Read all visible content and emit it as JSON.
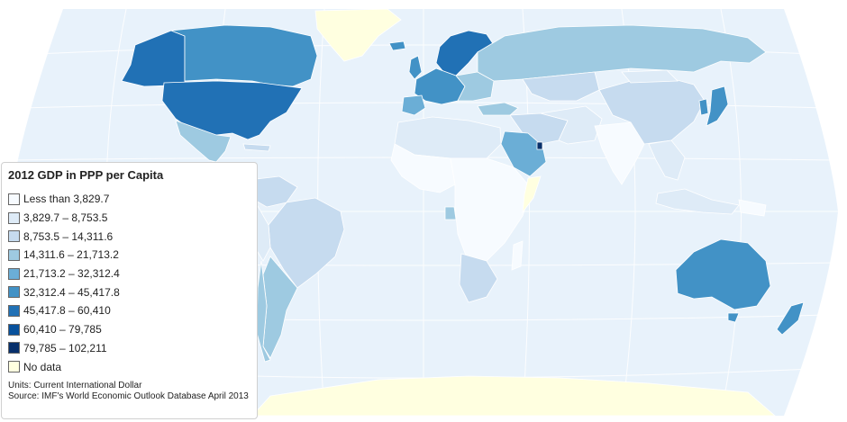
{
  "legend": {
    "title": "2012 GDP in PPP per Capita",
    "items": [
      {
        "label": "Less than 3,829.7",
        "color": "#f7fbff"
      },
      {
        "label": "3,829.7 – 8,753.5",
        "color": "#deebf7"
      },
      {
        "label": "8,753.5 – 14,311.6",
        "color": "#c6dbef"
      },
      {
        "label": "14,311.6 – 21,713.2",
        "color": "#9ecae1"
      },
      {
        "label": "21,713.2 – 32,312.4",
        "color": "#6baed6"
      },
      {
        "label": "32,312.4 – 45,417.8",
        "color": "#4292c6"
      },
      {
        "label": "45,417.8 – 60,410",
        "color": "#2171b5"
      },
      {
        "label": "60,410 – 79,785",
        "color": "#08519c"
      },
      {
        "label": "79,785 – 102,211",
        "color": "#08306b"
      },
      {
        "label": "No data",
        "color": "#ffffe0"
      }
    ],
    "units": "Units: Current International Dollar",
    "source": "Source: IMF's World Economic Outlook Database April 2013"
  },
  "map": {
    "ocean_color": "#e8f2fb",
    "graticule_color": "#ffffff",
    "border_color": "#ffffff"
  }
}
